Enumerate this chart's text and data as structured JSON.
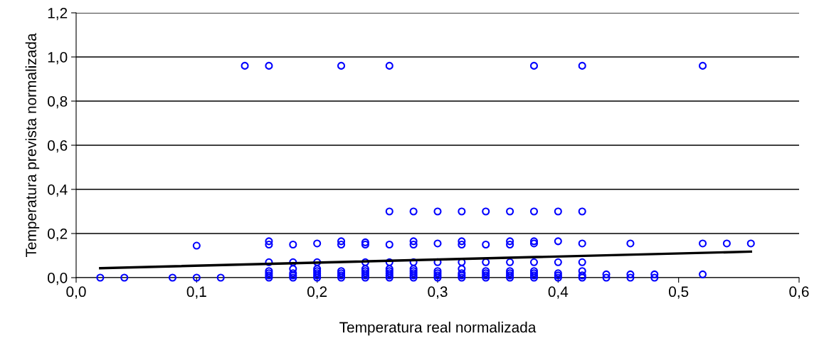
{
  "chart_data": {
    "type": "scatter",
    "xlabel": "Temperatura real normalizada",
    "ylabel": "Temperatura prevista normalizada",
    "xlim": [
      0,
      0.6
    ],
    "ylim": [
      0,
      1.2
    ],
    "xticks": [
      {
        "value": 0,
        "label": "0,0"
      },
      {
        "value": 0.1,
        "label": "0,1"
      },
      {
        "value": 0.2,
        "label": "0,2"
      },
      {
        "value": 0.3,
        "label": "0,3"
      },
      {
        "value": 0.4,
        "label": "0,4"
      },
      {
        "value": 0.5,
        "label": "0,5"
      },
      {
        "value": 0.6,
        "label": "0,6"
      }
    ],
    "yticks": [
      {
        "value": 0,
        "label": "0,0"
      },
      {
        "value": 0.2,
        "label": "0,2"
      },
      {
        "value": 0.4,
        "label": "0,4"
      },
      {
        "value": 0.6,
        "label": "0,6"
      },
      {
        "value": 0.8,
        "label": "0,8"
      },
      {
        "value": 1.0,
        "label": "1,0"
      },
      {
        "value": 1.2,
        "label": "1,2"
      }
    ],
    "grid": "y",
    "legend": false,
    "marker": "circle",
    "series": [
      {
        "color": "#0000ff",
        "x": [
          0.02,
          0.04,
          0.08,
          0.1,
          0.1,
          0.12,
          0.14,
          0.16,
          0.16,
          0.16,
          0.16,
          0.16,
          0.16,
          0.16,
          0.16,
          0.18,
          0.18,
          0.18,
          0.18,
          0.18,
          0.18,
          0.2,
          0.2,
          0.2,
          0.2,
          0.2,
          0.2,
          0.2,
          0.22,
          0.22,
          0.22,
          0.22,
          0.22,
          0.22,
          0.22,
          0.24,
          0.24,
          0.24,
          0.24,
          0.24,
          0.24,
          0.24,
          0.24,
          0.26,
          0.26,
          0.26,
          0.26,
          0.26,
          0.26,
          0.26,
          0.26,
          0.26,
          0.28,
          0.28,
          0.28,
          0.28,
          0.28,
          0.28,
          0.28,
          0.28,
          0.28,
          0.3,
          0.3,
          0.3,
          0.3,
          0.3,
          0.3,
          0.3,
          0.32,
          0.32,
          0.32,
          0.32,
          0.32,
          0.32,
          0.32,
          0.32,
          0.34,
          0.34,
          0.34,
          0.34,
          0.34,
          0.34,
          0.34,
          0.36,
          0.36,
          0.36,
          0.36,
          0.36,
          0.36,
          0.36,
          0.36,
          0.38,
          0.38,
          0.38,
          0.38,
          0.38,
          0.38,
          0.38,
          0.38,
          0.38,
          0.4,
          0.4,
          0.4,
          0.4,
          0.4,
          0.4,
          0.42,
          0.42,
          0.42,
          0.42,
          0.42,
          0.42,
          0.42,
          0.44,
          0.44,
          0.46,
          0.46,
          0.46,
          0.48,
          0.48,
          0.52,
          0.52,
          0.52,
          0.54,
          0.56
        ],
        "values": [
          0,
          0,
          0,
          0,
          0.145,
          0,
          0.96,
          0.96,
          0,
          0.01,
          0.02,
          0.03,
          0.07,
          0.15,
          0.165,
          0,
          0.01,
          0.02,
          0.04,
          0.07,
          0.15,
          0,
          0.01,
          0.02,
          0.03,
          0.04,
          0.07,
          0.155,
          0.96,
          0,
          0.01,
          0.02,
          0.03,
          0.15,
          0.165,
          0,
          0.01,
          0.02,
          0.03,
          0.04,
          0.07,
          0.15,
          0.16,
          0.96,
          0.3,
          0,
          0.01,
          0.02,
          0.03,
          0.04,
          0.07,
          0.15,
          0.3,
          0,
          0.01,
          0.02,
          0.03,
          0.04,
          0.07,
          0.15,
          0.165,
          0.3,
          0,
          0.01,
          0.02,
          0.03,
          0.07,
          0.155,
          0.3,
          0,
          0.01,
          0.02,
          0.04,
          0.07,
          0.15,
          0.165,
          0.3,
          0,
          0.01,
          0.02,
          0.03,
          0.07,
          0.15,
          0.3,
          0,
          0.01,
          0.02,
          0.03,
          0.07,
          0.15,
          0.165,
          0.96,
          0.3,
          0,
          0.01,
          0.02,
          0.03,
          0.07,
          0.155,
          0.165,
          0.3,
          0,
          0.01,
          0.02,
          0.07,
          0.165,
          0.96,
          0.3,
          0,
          0.01,
          0.03,
          0.07,
          0.155,
          0,
          0.015,
          0,
          0.015,
          0.155,
          0,
          0.015,
          0.96,
          0.015,
          0.155,
          0.155,
          0.155
        ]
      },
      {
        "type": "line",
        "color": "#000000",
        "marker": "none",
        "x": [
          0.02,
          0.56
        ],
        "values": [
          0.043,
          0.118
        ]
      }
    ]
  }
}
